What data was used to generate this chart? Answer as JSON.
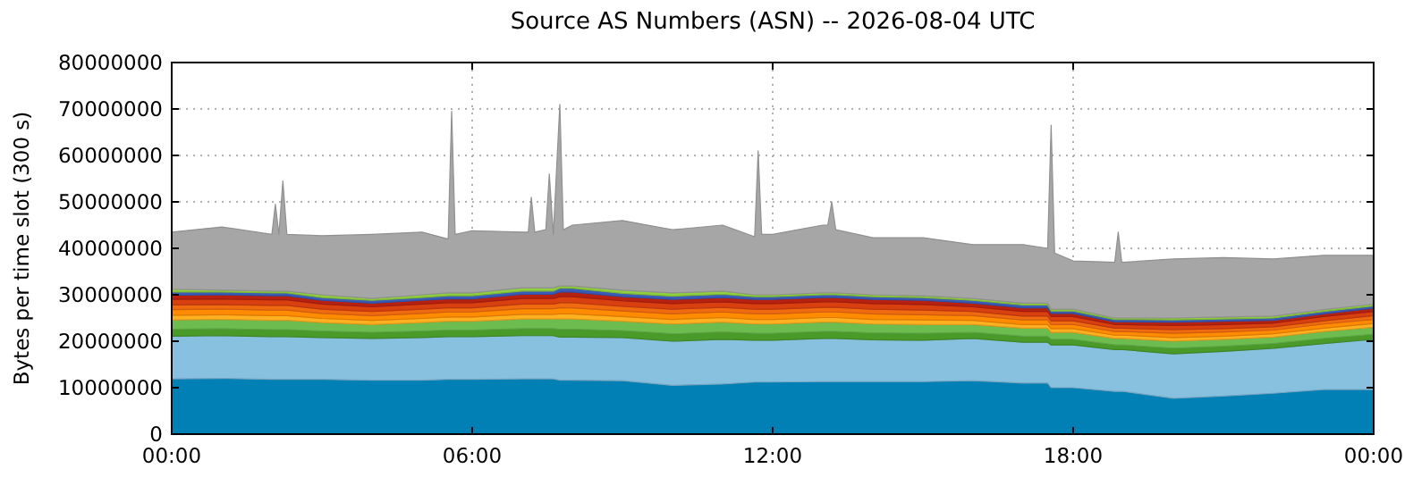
{
  "chart_data": {
    "type": "area",
    "stacked": true,
    "title": "Source AS Numbers (ASN) -- 2026-08-04 UTC",
    "ylabel": "Bytes per time slot (300 s)",
    "grid": true,
    "xlim": [
      0,
      24
    ],
    "xticks": [
      {
        "value": 0,
        "label": "00:00"
      },
      {
        "value": 6,
        "label": "06:00"
      },
      {
        "value": 12,
        "label": "12:00"
      },
      {
        "value": 18,
        "label": "18:00"
      },
      {
        "value": 24,
        "label": "00:00"
      }
    ],
    "ylim": [
      0,
      80000000
    ],
    "yticks": [
      0,
      10000000,
      20000000,
      30000000,
      40000000,
      50000000,
      60000000,
      70000000,
      80000000
    ],
    "x": [
      0,
      1,
      2,
      2.07,
      2.14,
      2.22,
      2.3,
      3,
      4,
      5,
      5.52,
      5.59,
      5.66,
      6,
      7,
      7.12,
      7.18,
      7.25,
      7.47,
      7.54,
      7.62,
      7.75,
      7.82,
      8,
      9,
      10,
      11,
      11.64,
      11.71,
      11.78,
      12,
      13,
      13.1,
      13.18,
      13.26,
      14,
      15,
      16,
      17,
      17.49,
      17.56,
      17.63,
      18,
      18.83,
      18.9,
      18.97,
      19,
      20,
      21,
      22,
      23,
      24
    ],
    "series": [
      {
        "color": "#0080b4",
        "values": [
          11900000.0,
          12000000.0,
          11800000.0,
          11800000.0,
          11800000.0,
          11800000.0,
          11800000.0,
          11800000.0,
          11600000.0,
          11600000.0,
          11800000.0,
          11800000.0,
          11800000.0,
          11800000.0,
          11900000.0,
          11900000.0,
          11900000.0,
          11900000.0,
          11900000.0,
          11900000.0,
          11900000.0,
          11600000.0,
          11600000.0,
          11600000.0,
          11500000.0,
          10500000.0,
          10800000.0,
          11200000.0,
          11200000.0,
          11200000.0,
          11200000.0,
          11300000.0,
          11300000.0,
          11300000.0,
          11300000.0,
          11300000.0,
          11300000.0,
          11500000.0,
          11000000.0,
          11000000.0,
          10000000.0,
          10000000.0,
          10000000.0,
          9200000.0,
          9200000.0,
          9200000.0,
          9200000.0,
          7700000.0,
          8200000.0,
          8800000.0,
          9600000.0,
          9600000.0
        ]
      },
      {
        "color": "#88c0e0",
        "values": [
          9200000.0,
          9200000.0,
          9200000.0,
          9200000.0,
          9200000.0,
          9200000.0,
          9200000.0,
          9000000.0,
          9000000.0,
          9200000.0,
          9200000.0,
          9200000.0,
          9200000.0,
          9200000.0,
          9300000.0,
          9300000.0,
          9300000.0,
          9300000.0,
          9300000.0,
          9300000.0,
          9300000.0,
          9300000.0,
          9300000.0,
          9300000.0,
          9300000.0,
          9500000.0,
          9600000.0,
          9000000.0,
          9000000.0,
          9000000.0,
          9000000.0,
          9300000.0,
          9300000.0,
          9300000.0,
          9300000.0,
          9000000.0,
          8900000.0,
          9100000.0,
          8800000.0,
          8800000.0,
          9200000.0,
          9200000.0,
          9200000.0,
          9000000.0,
          9000000.0,
          9000000.0,
          9000000.0,
          9600000.0,
          9600000.0,
          9700000.0,
          9900000.0,
          10800000.0
        ]
      },
      {
        "color": "#4a9a2a",
        "values": [
          1500000.0,
          1500000.0,
          1500000.0,
          1500000.0,
          1500000.0,
          1500000.0,
          1500000.0,
          1400000.0,
          1300000.0,
          1400000.0,
          1400000.0,
          1400000.0,
          1400000.0,
          1400000.0,
          1500000.0,
          1500000.0,
          1500000.0,
          1500000.0,
          1500000.0,
          1500000.0,
          1500000.0,
          1700000.0,
          1700000.0,
          1700000.0,
          1500000.0,
          1600000.0,
          1600000.0,
          1500000.0,
          1500000.0,
          1500000.0,
          1500000.0,
          1500000.0,
          1500000.0,
          1500000.0,
          1500000.0,
          1500000.0,
          1500000.0,
          1300000.0,
          1300000.0,
          1300000.0,
          1200000.0,
          1200000.0,
          1200000.0,
          1000000.0,
          1000000.0,
          1000000.0,
          1000000.0,
          1200000.0,
          1100000.0,
          1000000.0,
          1100000.0,
          1100000.0
        ]
      },
      {
        "color": "#6cbc50",
        "values": [
          2000000.0,
          2000000.0,
          2000000.0,
          2000000.0,
          2000000.0,
          2000000.0,
          2000000.0,
          1800000.0,
          1700000.0,
          1800000.0,
          1900000.0,
          1900000.0,
          1900000.0,
          1900000.0,
          2100000.0,
          2100000.0,
          2100000.0,
          2100000.0,
          2100000.0,
          2100000.0,
          2100000.0,
          2200000.0,
          2200000.0,
          2200000.0,
          2000000.0,
          2100000.0,
          2100000.0,
          2000000.0,
          2000000.0,
          2000000.0,
          2000000.0,
          2000000.0,
          2000000.0,
          2000000.0,
          2000000.0,
          1900000.0,
          1900000.0,
          1700000.0,
          1700000.0,
          1700000.0,
          1500000.0,
          1500000.0,
          1500000.0,
          1400000.0,
          1400000.0,
          1400000.0,
          1400000.0,
          1500000.0,
          1500000.0,
          1400000.0,
          1500000.0,
          1500000.0
        ]
      },
      {
        "color": "#ffb020",
        "values": [
          1000000.0,
          1000000.0,
          1000000.0,
          1000000.0,
          1000000.0,
          1000000.0,
          1000000.0,
          900000.0,
          900000.0,
          900000.0,
          900000.0,
          900000.0,
          900000.0,
          900000.0,
          1000000.0,
          1000000.0,
          1000000.0,
          1000000.0,
          1000000.0,
          1000000.0,
          1000000.0,
          1100000.0,
          1100000.0,
          1100000.0,
          1000000.0,
          1000000.0,
          1000000.0,
          1000000.0,
          1000000.0,
          1000000.0,
          1000000.0,
          1000000.0,
          1000000.0,
          1000000.0,
          1000000.0,
          1000000.0,
          1000000.0,
          900000.0,
          800000.0,
          800000.0,
          800000.0,
          800000.0,
          800000.0,
          700000.0,
          700000.0,
          700000.0,
          700000.0,
          800000.0,
          700000.0,
          700000.0,
          700000.0,
          800000.0
        ]
      },
      {
        "color": "#ff8c00",
        "values": [
          1200000.0,
          1200000.0,
          1200000.0,
          1200000.0,
          1200000.0,
          1200000.0,
          1200000.0,
          1100000.0,
          1000000.0,
          1100000.0,
          1100000.0,
          1100000.0,
          1100000.0,
          1100000.0,
          1200000.0,
          1200000.0,
          1200000.0,
          1200000.0,
          1200000.0,
          1200000.0,
          1200000.0,
          1300000.0,
          1300000.0,
          1300000.0,
          1200000.0,
          1200000.0,
          1200000.0,
          1200000.0,
          1200000.0,
          1200000.0,
          1200000.0,
          1200000.0,
          1200000.0,
          1200000.0,
          1200000.0,
          1200000.0,
          1100000.0,
          1000000.0,
          1000000.0,
          1000000.0,
          900000.0,
          900000.0,
          900000.0,
          800000.0,
          800000.0,
          800000.0,
          800000.0,
          900000.0,
          900000.0,
          800000.0,
          900000.0,
          900000.0
        ]
      },
      {
        "color": "#f06a10",
        "values": [
          1000000.0,
          1000000.0,
          1000000.0,
          1000000.0,
          1000000.0,
          1000000.0,
          1000000.0,
          900000.0,
          900000.0,
          900000.0,
          900000.0,
          900000.0,
          900000.0,
          900000.0,
          1000000.0,
          1000000.0,
          1000000.0,
          1000000.0,
          1000000.0,
          1000000.0,
          1000000.0,
          1100000.0,
          1100000.0,
          1100000.0,
          1000000.0,
          1000000.0,
          1000000.0,
          1000000.0,
          1000000.0,
          1000000.0,
          1000000.0,
          1000000.0,
          1000000.0,
          1000000.0,
          1000000.0,
          1000000.0,
          1000000.0,
          900000.0,
          800000.0,
          800000.0,
          800000.0,
          800000.0,
          800000.0,
          700000.0,
          700000.0,
          700000.0,
          700000.0,
          800000.0,
          700000.0,
          700000.0,
          700000.0,
          800000.0
        ]
      },
      {
        "color": "#d84010",
        "values": [
          1200000.0,
          1200000.0,
          1200000.0,
          1200000.0,
          1200000.0,
          1200000.0,
          1200000.0,
          1100000.0,
          1000000.0,
          1100000.0,
          1100000.0,
          1100000.0,
          1100000.0,
          1100000.0,
          1200000.0,
          1200000.0,
          1200000.0,
          1200000.0,
          1200000.0,
          1200000.0,
          1200000.0,
          1300000.0,
          1300000.0,
          1300000.0,
          1200000.0,
          1200000.0,
          1200000.0,
          1200000.0,
          1200000.0,
          1200000.0,
          1200000.0,
          1200000.0,
          1200000.0,
          1200000.0,
          1200000.0,
          1200000.0,
          1200000.0,
          1000000.0,
          1000000.0,
          1000000.0,
          900000.0,
          900000.0,
          900000.0,
          800000.0,
          800000.0,
          800000.0,
          800000.0,
          900000.0,
          900000.0,
          800000.0,
          900000.0,
          900000.0
        ]
      },
      {
        "color": "#b82010",
        "values": [
          900000.0,
          900000.0,
          900000.0,
          900000.0,
          900000.0,
          900000.0,
          900000.0,
          800000.0,
          800000.0,
          800000.0,
          800000.0,
          800000.0,
          800000.0,
          800000.0,
          900000.0,
          900000.0,
          900000.0,
          900000.0,
          900000.0,
          900000.0,
          900000.0,
          1000000.0,
          1000000.0,
          1000000.0,
          900000.0,
          900000.0,
          900000.0,
          900000.0,
          900000.0,
          900000.0,
          900000.0,
          900000.0,
          900000.0,
          900000.0,
          900000.0,
          900000.0,
          900000.0,
          800000.0,
          800000.0,
          800000.0,
          700000.0,
          700000.0,
          700000.0,
          600000.0,
          600000.0,
          600000.0,
          600000.0,
          700000.0,
          700000.0,
          600000.0,
          600000.0,
          700000.0
        ]
      },
      {
        "color": "#3a5cb8",
        "values": [
          700000.0,
          600000.0,
          600000.0,
          600000.0,
          600000.0,
          600000.0,
          600000.0,
          600000.0,
          600000.0,
          600000.0,
          700000.0,
          700000.0,
          700000.0,
          700000.0,
          700000.0,
          700000.0,
          700000.0,
          700000.0,
          700000.0,
          700000.0,
          700000.0,
          800000.0,
          800000.0,
          800000.0,
          700000.0,
          700000.0,
          700000.0,
          600000.0,
          600000.0,
          600000.0,
          600000.0,
          600000.0,
          600000.0,
          600000.0,
          600000.0,
          600000.0,
          600000.0,
          600000.0,
          600000.0,
          600000.0,
          500000.0,
          500000.0,
          500000.0,
          500000.0,
          500000.0,
          500000.0,
          500000.0,
          500000.0,
          500000.0,
          500000.0,
          500000.0,
          500000.0
        ]
      },
      {
        "color": "#90d040",
        "values": [
          600000.0,
          400000.0,
          400000.0,
          400000.0,
          400000.0,
          400000.0,
          400000.0,
          600000.0,
          400000.0,
          600000.0,
          600000.0,
          600000.0,
          600000.0,
          600000.0,
          700000.0,
          700000.0,
          700000.0,
          700000.0,
          700000.0,
          700000.0,
          700000.0,
          500000.0,
          500000.0,
          500000.0,
          700000.0,
          700000.0,
          700000.0,
          400000.0,
          400000.0,
          400000.0,
          400000.0,
          400000.0,
          400000.0,
          400000.0,
          400000.0,
          400000.0,
          400000.0,
          400000.0,
          400000.0,
          400000.0,
          400000.0,
          400000.0,
          400000.0,
          300000.0,
          300000.0,
          300000.0,
          300000.0,
          400000.0,
          400000.0,
          400000.0,
          400000.0,
          400000.0
        ]
      },
      {
        "color": "#a6a6a6",
        "values": [
          12300000.0,
          13600000.0,
          12200000.0,
          18700000.0,
          12200000.0,
          23700000.0,
          12200000.0,
          12700000.0,
          13800000.0,
          13500000.0,
          11600000.0,
          39100000.0,
          12600000.0,
          13400000.0,
          12000000.0,
          12000000.0,
          19500000.0,
          12000000.0,
          12500000.0,
          24500000.0,
          11500000.0,
          39100000.0,
          12100000.0,
          13100000.0,
          15000000.0,
          13600000.0,
          14200000.0,
          12500000.0,
          31000000.0,
          13000000.0,
          13000000.0,
          14600000.0,
          14600000.0,
          19600000.0,
          13600000.0,
          12300000.0,
          12500000.0,
          11600000.0,
          12600000.0,
          11800000.0,
          39600000.0,
          12100000.0,
          10400000.0,
          12000000.0,
          18500000.0,
          12000000.0,
          12000000.0,
          12700000.0,
          12800000.0,
          12300000.0,
          11700000.0,
          10500000.0
        ]
      }
    ]
  }
}
